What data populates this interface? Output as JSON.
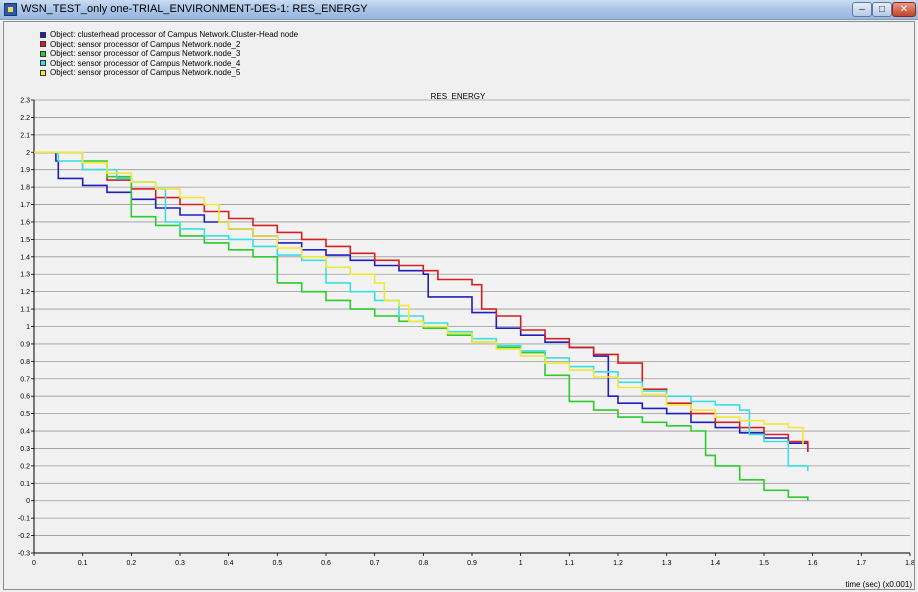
{
  "window": {
    "title": "WSN_TEST_only one-TRIAL_ENVIRONMENT-DES-1: RES_ENERGY",
    "controls": {
      "minimize": "–",
      "maximize": "□",
      "close": "✕"
    }
  },
  "colors": {
    "background": "#f0f0f0",
    "grid": "#9a9a9a",
    "axis": "#000000"
  },
  "chart_data": {
    "type": "line",
    "title": "RES_ENERGY",
    "xlabel": "time (sec) (x0.001)",
    "ylabel": "",
    "xlim": [
      0,
      1.8
    ],
    "ylim": [
      -0.3,
      2.3
    ],
    "xticks": [
      0,
      0.1,
      0.2,
      0.3,
      0.4,
      0.5,
      0.6,
      0.7,
      0.8,
      0.9,
      1,
      1.1,
      1.2,
      1.3,
      1.4,
      1.5,
      1.6,
      1.7,
      1.8
    ],
    "yticks": [
      -0.3,
      -0.2,
      -0.1,
      0,
      0.1,
      0.2,
      0.3,
      0.4,
      0.5,
      0.6,
      0.7,
      0.8,
      0.9,
      1,
      1.1,
      1.2,
      1.3,
      1.4,
      1.5,
      1.6,
      1.7,
      1.8,
      1.9,
      2,
      2.1,
      2.2,
      2.3
    ],
    "xtick_labels": [
      "0",
      "0.1",
      "0.2",
      "0.3",
      "0.4",
      "0.5",
      "0.6",
      "0.7",
      "0.8",
      "0.9",
      "1",
      "1.1",
      "1.2",
      "1.3",
      "1.4",
      "1.5",
      "1.6",
      "1.7",
      "1.8"
    ],
    "ytick_labels": [
      "-0.3",
      "-0.2",
      "-0.1",
      "0",
      "0.1",
      "0.2",
      "0.3",
      "0.4",
      "0.5",
      "0.6",
      "0.7",
      "0.8",
      "0.9",
      "1",
      "1.1",
      "1.2",
      "1.3",
      "1.4",
      "1.5",
      "1.6",
      "1.7",
      "1.8",
      "1.9",
      "2",
      "2.1",
      "2.2",
      "2.3"
    ],
    "grid": "horizontal",
    "legend_position": "top-left",
    "series": [
      {
        "name": "Object: clusterhead processor of Campus Network.Cluster-Head node",
        "color": "#1f1fbf",
        "x": [
          0,
          0.045,
          0.05,
          0.1,
          0.15,
          0.2,
          0.25,
          0.3,
          0.35,
          0.4,
          0.45,
          0.5,
          0.55,
          0.6,
          0.65,
          0.7,
          0.75,
          0.8,
          0.81,
          0.9,
          0.95,
          1.0,
          1.05,
          1.1,
          1.15,
          1.18,
          1.2,
          1.25,
          1.3,
          1.35,
          1.4,
          1.45,
          1.5,
          1.55,
          1.59
        ],
        "y": [
          2.0,
          1.95,
          1.85,
          1.81,
          1.77,
          1.73,
          1.68,
          1.64,
          1.6,
          1.56,
          1.52,
          1.48,
          1.44,
          1.41,
          1.38,
          1.35,
          1.32,
          1.3,
          1.17,
          1.08,
          0.99,
          0.95,
          0.91,
          0.88,
          0.83,
          0.6,
          0.56,
          0.53,
          0.5,
          0.45,
          0.42,
          0.39,
          0.36,
          0.33,
          0.28
        ]
      },
      {
        "name": "Object: sensor processor of Campus Network.node_2",
        "color": "#d42020",
        "x": [
          0,
          0.1,
          0.15,
          0.2,
          0.25,
          0.3,
          0.35,
          0.4,
          0.45,
          0.5,
          0.55,
          0.6,
          0.65,
          0.7,
          0.75,
          0.8,
          0.83,
          0.9,
          0.92,
          0.95,
          1.0,
          1.05,
          1.1,
          1.15,
          1.2,
          1.25,
          1.3,
          1.35,
          1.4,
          1.45,
          1.5,
          1.55,
          1.59
        ],
        "y": [
          2.0,
          1.9,
          1.84,
          1.79,
          1.74,
          1.7,
          1.66,
          1.62,
          1.58,
          1.54,
          1.5,
          1.46,
          1.42,
          1.38,
          1.35,
          1.32,
          1.27,
          1.24,
          1.1,
          1.06,
          0.98,
          0.93,
          0.88,
          0.84,
          0.79,
          0.64,
          0.56,
          0.5,
          0.45,
          0.42,
          0.38,
          0.34,
          0.28
        ]
      },
      {
        "name": "Object: sensor processor of Campus Network.node_3",
        "color": "#2ccc2c",
        "x": [
          0,
          0.1,
          0.15,
          0.2,
          0.25,
          0.3,
          0.35,
          0.4,
          0.45,
          0.5,
          0.55,
          0.6,
          0.65,
          0.7,
          0.75,
          0.8,
          0.85,
          0.9,
          0.95,
          1.0,
          1.05,
          1.1,
          1.15,
          1.2,
          1.25,
          1.3,
          1.35,
          1.38,
          1.4,
          1.45,
          1.5,
          1.55,
          1.59
        ],
        "y": [
          2.0,
          1.95,
          1.86,
          1.63,
          1.58,
          1.52,
          1.48,
          1.44,
          1.4,
          1.25,
          1.2,
          1.15,
          1.1,
          1.06,
          1.03,
          0.99,
          0.95,
          0.91,
          0.88,
          0.85,
          0.72,
          0.57,
          0.52,
          0.48,
          0.45,
          0.43,
          0.4,
          0.26,
          0.2,
          0.12,
          0.06,
          0.02,
          0.0
        ]
      },
      {
        "name": "Object: sensor processor of Campus Network.node_4",
        "color": "#38e0e0",
        "x": [
          0,
          0.05,
          0.1,
          0.17,
          0.2,
          0.25,
          0.27,
          0.3,
          0.35,
          0.4,
          0.45,
          0.5,
          0.55,
          0.6,
          0.65,
          0.7,
          0.75,
          0.8,
          0.85,
          0.9,
          0.95,
          1.0,
          1.05,
          1.1,
          1.15,
          1.2,
          1.25,
          1.3,
          1.35,
          1.4,
          1.45,
          1.47,
          1.5,
          1.55,
          1.59
        ],
        "y": [
          2.0,
          1.95,
          1.9,
          1.85,
          1.83,
          1.79,
          1.6,
          1.56,
          1.52,
          1.5,
          1.46,
          1.41,
          1.38,
          1.25,
          1.2,
          1.15,
          1.06,
          1.02,
          0.97,
          0.93,
          0.89,
          0.86,
          0.82,
          0.77,
          0.74,
          0.68,
          0.63,
          0.6,
          0.57,
          0.55,
          0.52,
          0.38,
          0.34,
          0.2,
          0.17
        ]
      },
      {
        "name": "Object: sensor processor of Campus Network.node_5",
        "color": "#f0e838",
        "x": [
          0,
          0.1,
          0.15,
          0.2,
          0.25,
          0.3,
          0.35,
          0.38,
          0.4,
          0.45,
          0.5,
          0.55,
          0.6,
          0.65,
          0.7,
          0.72,
          0.75,
          0.77,
          0.8,
          0.85,
          0.9,
          0.95,
          1.0,
          1.05,
          1.1,
          1.15,
          1.2,
          1.25,
          1.3,
          1.35,
          1.4,
          1.45,
          1.5,
          1.55,
          1.58
        ],
        "y": [
          2.0,
          1.94,
          1.88,
          1.83,
          1.79,
          1.74,
          1.7,
          1.6,
          1.56,
          1.52,
          1.45,
          1.4,
          1.34,
          1.3,
          1.25,
          1.15,
          1.12,
          1.03,
          1.0,
          0.96,
          0.91,
          0.87,
          0.83,
          0.79,
          0.75,
          0.71,
          0.65,
          0.61,
          0.55,
          0.52,
          0.48,
          0.46,
          0.44,
          0.42,
          0.32
        ]
      }
    ]
  }
}
